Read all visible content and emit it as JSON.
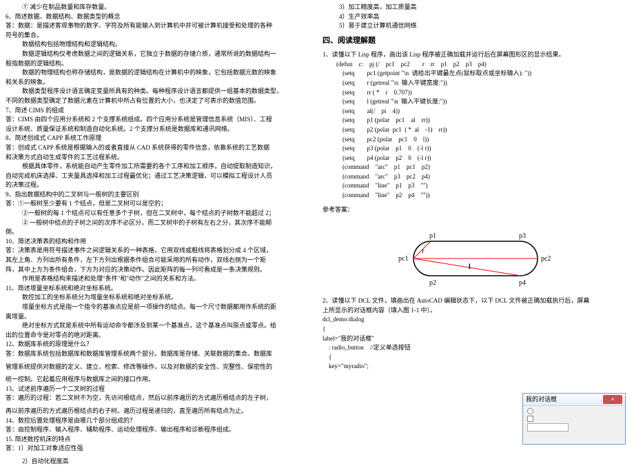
{
  "left": {
    "l1": "⑦ 减少在制品数量和库存数量。",
    "l2": "6、简述数据、数据结构、数据类型的概念",
    "l3": "答：数据：是描述客观事物的数字、字符及所有能输入到计算机中并可被计算机接受和处理的各种",
    "l4": "符号的集合。",
    "l5": "数据结构包括物理结构和逻辑结构。",
    "l6": "数据逻辑结构仅考虑数据之间的逻辑关系，它独立于数据的存储介质，通常所说的数据结构一",
    "l7": "般指数据的逻辑结构。",
    "l8": "数据的物理结构也称存储结构，是数据的逻辑结构在计算机中的映象，它包括数据元数的映象",
    "l9": "和关系的映象。",
    "l10": "数据类型程序设计语言确定变量所具有的种类。每种程序设计语言都提供一组基本的数据类型，",
    "l11": "不同的数据类型确定了数据元素在计算机中所占有位置的大小，也决定了可表示的数值范围。",
    "l12": "7、简述 CIMS 的组成",
    "l13": "答：CIMS 由四个应用分系统和 2 个支撑系统组成。四个应用分系统是管理信息系统（MIS）、工程",
    "l14": "设计系统、质量保证系统和制造自动化系统。2 个支撑分系统是数据库和通讯网络。",
    "l15": "8、简述创成式 CAPP 系统工作原理",
    "l16": "答：创成式 CAPP 系统是根据输入的或者直接从 CAD 系统获得的零件信息，依靠系统的工艺数据",
    "l17": "和决策方式自动生成零件的工艺过程系统。",
    "l18": "根据具体零件，系统能自动产生零件加工所需要的各个工序和加工顺序，自动提取制造知识，",
    "l19": "自动完成机床选择、工夹量具选择和加工过程最优化；通过工艺决策逻辑，可以模拟工程设计人员",
    "l20": "的决策过程。",
    "l21": "9、指出数据结构中的二叉树与一般树的主要区别",
    "l22": "答：①一般树至少要有 1 个结点，但是二叉树可以是空的；",
    "l23": "②一般树的每 1 个结点可以有任意多个子树，但在二叉树中，每个结点的子树数不能超过 2；",
    "l24": "③ 一般树中结点的子树之间的次序不必区分，而二叉树中的子树有左右之分，其次序不能颠",
    "l25": "倒。",
    "l26": "10、简述决策表的结构和作用",
    "l27": "答：决策表是用符号描述事件之间逻辑关系的一种表格，它用双线或粗线将表格划分成 4 个区域，",
    "l28": "其左上角、方列出所有条件，左下方列出根据条件组合可能采用的所有动作，双线右侧为一个矩",
    "l29": "阵，其中上方为条件组合，下方为对应的决策动作。因此矩阵的每一列可看成是一条决策规则。",
    "l30": "作用是表格结构来描述和处理\"条件\"和\"动作\"之间的关系和方法。",
    "l31": "11、简述增量坐标系统和绝对坐标系统。",
    "l32": "数控加工的坐标系统分为增量坐标系统和绝对坐标系统。",
    "l33": "增量坐标方式是指一个指令的基准点应是前一项操作的结点。每一个尺寸数据都用作系统的距",
    "l34": "离增量。",
    "l35": "绝对坐标方式就是系统中所有运动命令都涉及到某一个基准点，这个基准点叫原点或零点。给",
    "l36": "出的位置命令是对零点的绝对距离。",
    "l37": "12、数据库系统的原理是什么？",
    "l38": "答：数据库系统包括数据库和数据库管理系统两个部分。数据库是存储、关联数据的集合。数据库",
    "l39": "管理系统提供对数据的定义、建立、检索、修改等操作，以及对数据的安全性、完整性、保密性的",
    "l40": "统一控制。它起着应用程序与数据库之间的接口作用。",
    "l41": "13、试述前序遍历一个二叉树的过程",
    "l42": "答：遍历的过程：若二叉树不为空，先访问根结点，然后以前序遍历的方式遍历根结点的左子树，",
    "l43": "再以前序遍历的方式遍历根结点的右子树。遍历过程是递归的，直至遍历所有结点为止。",
    "l44": "14、数控后置处理程序是由哪几个部分组成的？",
    "l45": "答：由控制程序、输入程序、辅助程序、运动处理程序、输出程序和诊断程序组成。",
    "l46": "15.  简述数控机床的特点",
    "l47": "答：1）对加工对象适应性强",
    "l48": "2）自动化程度高"
  },
  "right": {
    "r1": "3）加工精度高，加工质量高",
    "r2": "4）生产效率高",
    "r3": "5）易于建立计算机通信网络",
    "section4": "四、阅读理解题",
    "q1_intro": "1、读懂以下 Lisp 程序，画出该 Lisp 程序被正确加载并运行后在屏幕图形区的显示结果。",
    "code": [
      "(defun    c:    pj (/    pc1    pc2        r    rr    p1    p2    p3    p4)",
      "    (setq        pc1 (getpoint \"\\n  请给出平键最左点(鼠标取点或坐标输入): \"))",
      "    (setq        r (getreal \"\\n  输入平键宽度:\"))",
      "    (setq        rr ( *    r    0.707))",
      "    (setq        l (getreal \"\\n  输入平键长度:\"))",
      "    (setq        al(/    pi    4))",
      "    (setq        p1 (polar    pc1    al    rr))",
      "    (setq        p2 (polar  pc1  ( *  al    -1)    rr))",
      "    (setq        pc2 (polar    pc1    0    l))",
      "    (setq        p3 (polar    p1    0    (-l r))",
      "    (setq        p4 (polar    p2    0    (-l r))",
      "    (command    \"arc\"    p1    pc1    p2)",
      "    (command    \"arc\"    p3    pc2    p4)",
      "    (command    \"line\"    p1    p3    \"\")",
      "    (command    \"line\"    p2    p4    \"\"))"
    ],
    "ans_label": "参考答案：",
    "diagram": {
      "p1": "p1",
      "p2": "p2",
      "p3": "p3",
      "p4": "p4",
      "pc1": "pc1",
      "pc2": "pc2",
      "r": "r",
      "l": "l",
      "arc_color": "#000000",
      "line_color": "#ff0000"
    },
    "q2_1": "2、读懂以下 DCL 文件，填画出在 AutoCAD 编辑状态下，以下 DCL 文件被正确加载执行后，屏幕",
    "q2_2": "上所显示的对话框内容（填入图 1-1 中）。",
    "dcl": [
      "dcl_demo:dialog",
      "{",
      "label=\"我的对话框\"",
      "    : radio_button    //定义单选按钮",
      "    {",
      "    key=\"myradio\";"
    ],
    "dialog": {
      "title": "我的对话框",
      "close": "×"
    }
  }
}
